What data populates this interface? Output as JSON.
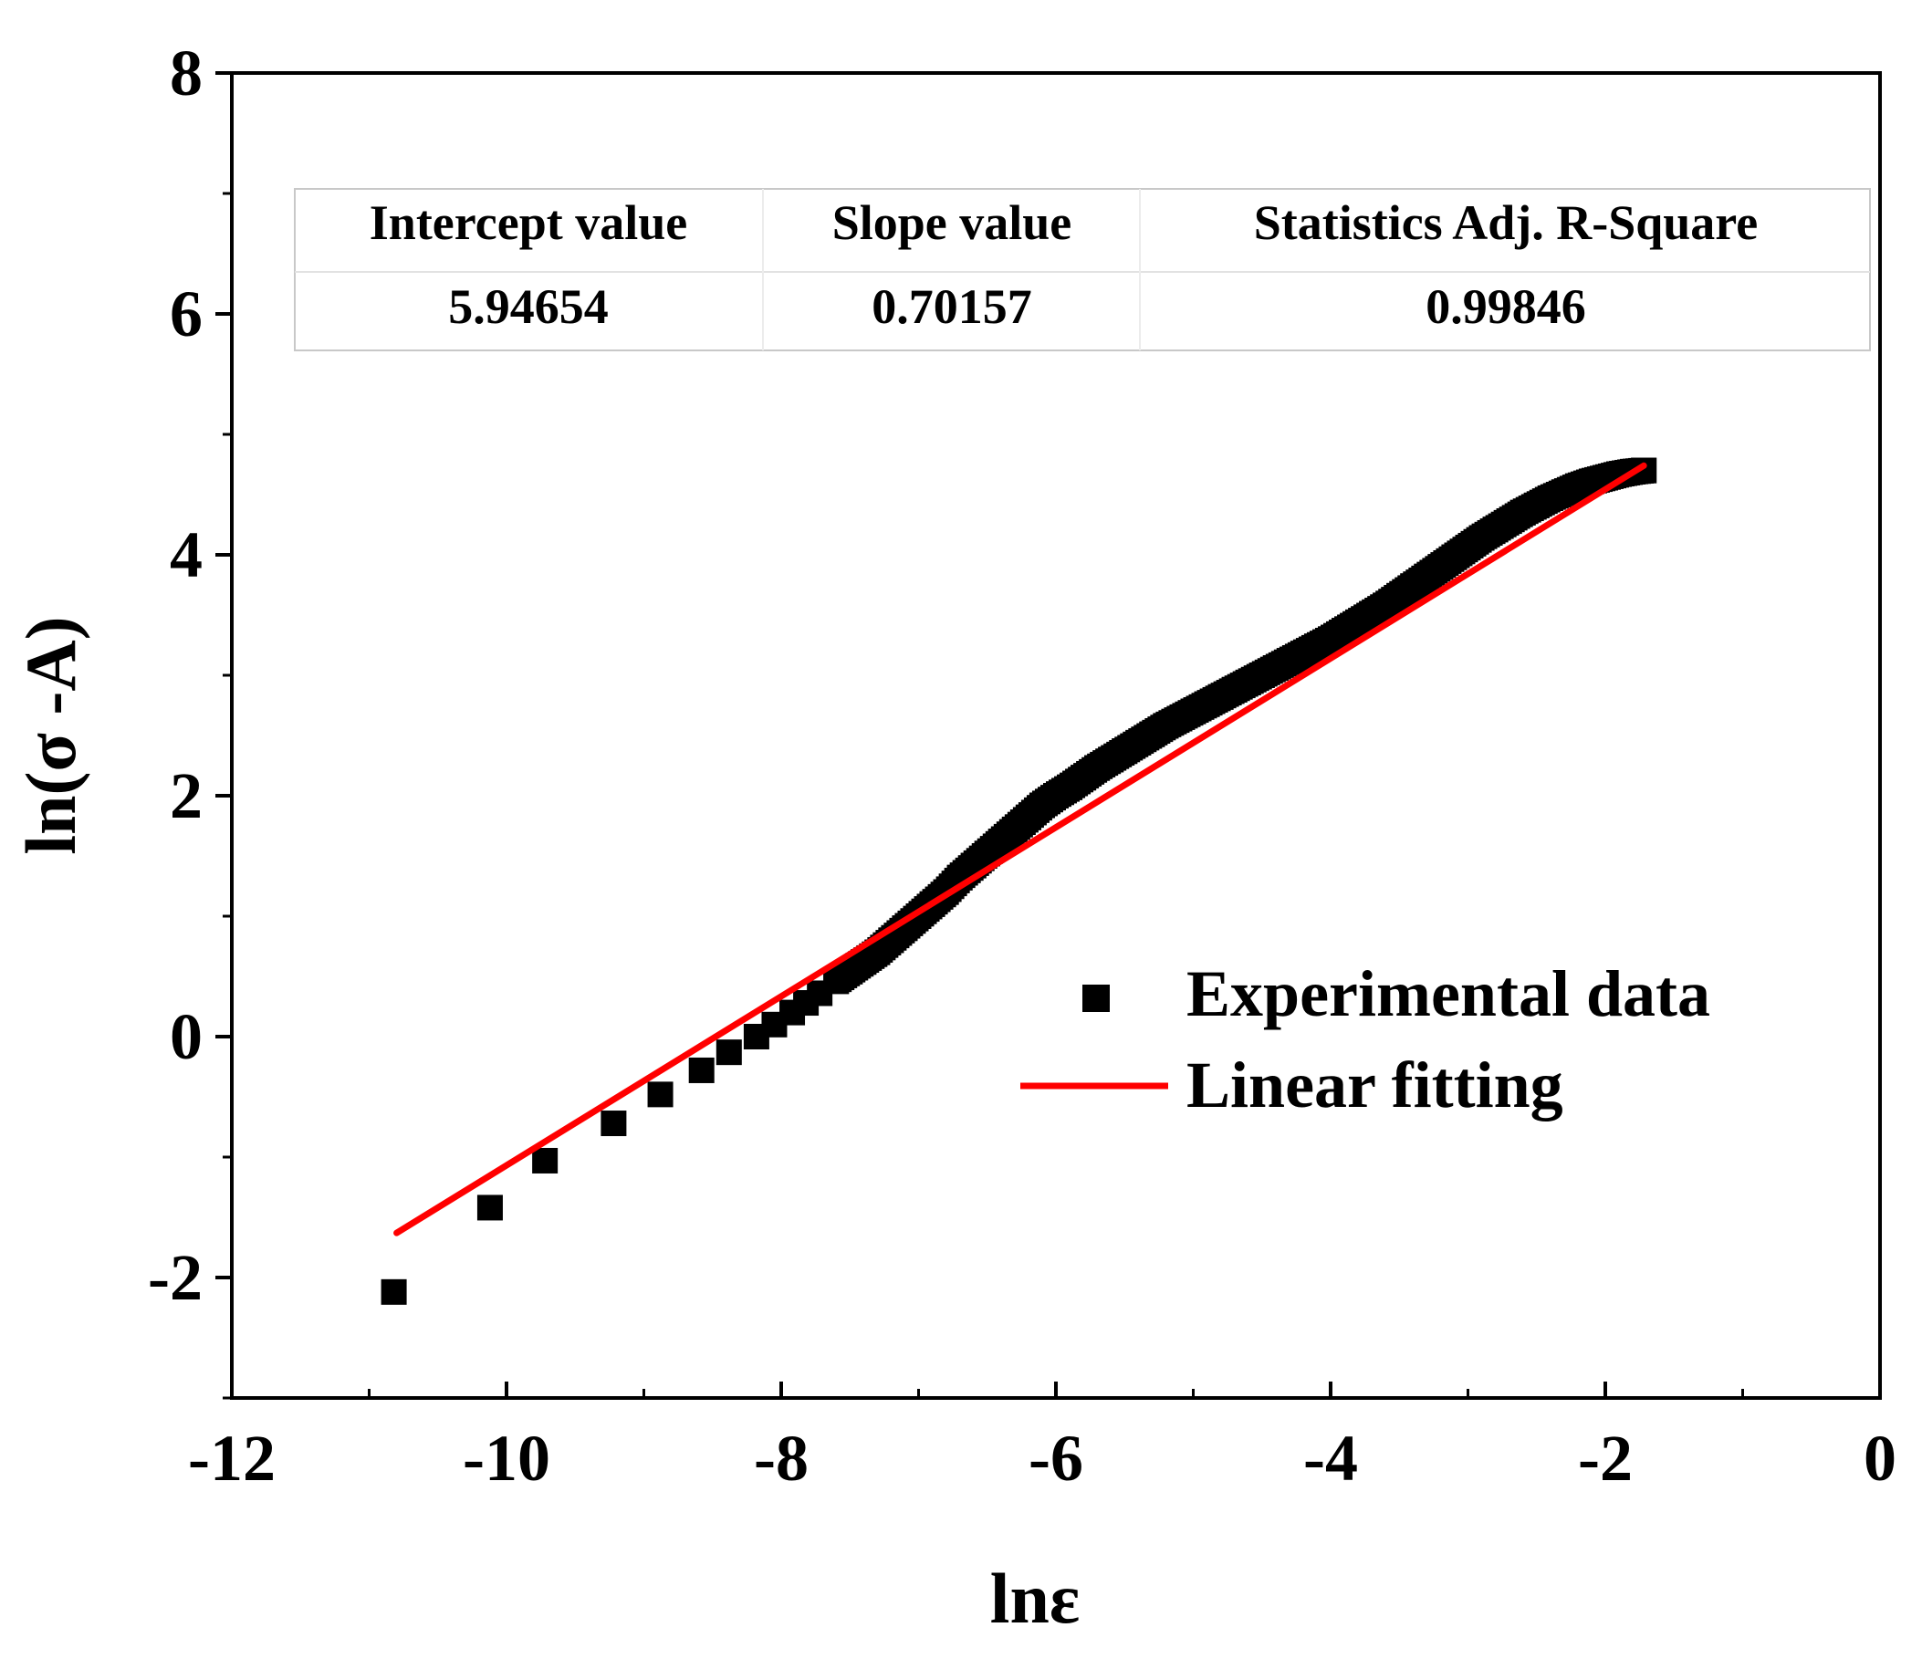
{
  "chart_data": {
    "type": "scatter",
    "title": "",
    "xlabel": "lnε",
    "ylabel": "ln(σ -A)",
    "xlim": [
      -12,
      0
    ],
    "ylim": [
      -3,
      8
    ],
    "x_ticks": [
      -12,
      -10,
      -8,
      -6,
      -4,
      -2,
      0
    ],
    "x_tick_labels": [
      "-12",
      "-10",
      "-8",
      "-6",
      "-4",
      "-2",
      "0"
    ],
    "y_ticks": [
      -2,
      0,
      2,
      4,
      6,
      8
    ],
    "y_tick_labels": [
      "-2",
      "0",
      "2",
      "4",
      "6",
      "8"
    ],
    "legend_position": "right",
    "series": [
      {
        "name": "Experimental data",
        "kind": "scatter",
        "marker": "square",
        "color": "#000000",
        "x": [
          -10.82,
          -10.12,
          -9.72,
          -9.22,
          -8.88,
          -8.58,
          -8.38,
          -8.18,
          -8.05,
          -7.92,
          -7.82,
          -7.72,
          -7.6,
          -7.5,
          -7.4,
          -7.3,
          -7.2,
          -7.1,
          -7.0,
          -6.9,
          -6.8,
          -6.7,
          -6.6,
          -6.5,
          -6.4,
          -6.3,
          -6.2,
          -6.1,
          -6.0,
          -5.9,
          -5.8,
          -5.7,
          -5.6,
          -5.5,
          -5.4,
          -5.3,
          -5.2,
          -5.1,
          -5.0,
          -4.9,
          -4.8,
          -4.7,
          -4.6,
          -4.5,
          -4.4,
          -4.3,
          -4.2,
          -4.1,
          -4.0,
          -3.9,
          -3.8,
          -3.7,
          -3.6,
          -3.5,
          -3.4,
          -3.3,
          -3.2,
          -3.1,
          -3.0,
          -2.9,
          -2.8,
          -2.7,
          -2.6,
          -2.5,
          -2.4,
          -2.3,
          -2.2,
          -2.1,
          -2.0,
          -1.9,
          -1.8,
          -1.72
        ],
        "y": [
          -2.12,
          -1.42,
          -1.03,
          -0.72,
          -0.48,
          -0.28,
          -0.13,
          0.0,
          0.1,
          0.2,
          0.28,
          0.36,
          0.46,
          0.54,
          0.62,
          0.7,
          0.8,
          0.9,
          1.0,
          1.1,
          1.2,
          1.32,
          1.42,
          1.52,
          1.62,
          1.72,
          1.82,
          1.92,
          2.0,
          2.07,
          2.15,
          2.23,
          2.3,
          2.37,
          2.44,
          2.51,
          2.58,
          2.64,
          2.7,
          2.76,
          2.82,
          2.88,
          2.94,
          3.0,
          3.06,
          3.12,
          3.18,
          3.24,
          3.3,
          3.37,
          3.44,
          3.51,
          3.58,
          3.66,
          3.74,
          3.82,
          3.9,
          3.98,
          4.06,
          4.14,
          4.21,
          4.28,
          4.35,
          4.41,
          4.47,
          4.52,
          4.57,
          4.61,
          4.64,
          4.67,
          4.69,
          4.7
        ]
      },
      {
        "name": "Linear fitting",
        "kind": "line",
        "color": "#ff0000",
        "x": [
          -10.8,
          -1.72
        ],
        "y": [
          -1.63,
          4.74
        ]
      }
    ],
    "fit_table": {
      "headers": [
        "Intercept value",
        "Slope value",
        "Statistics Adj. R-Square"
      ],
      "values": [
        "5.94654",
        "0.70157",
        "0.99846"
      ]
    }
  }
}
